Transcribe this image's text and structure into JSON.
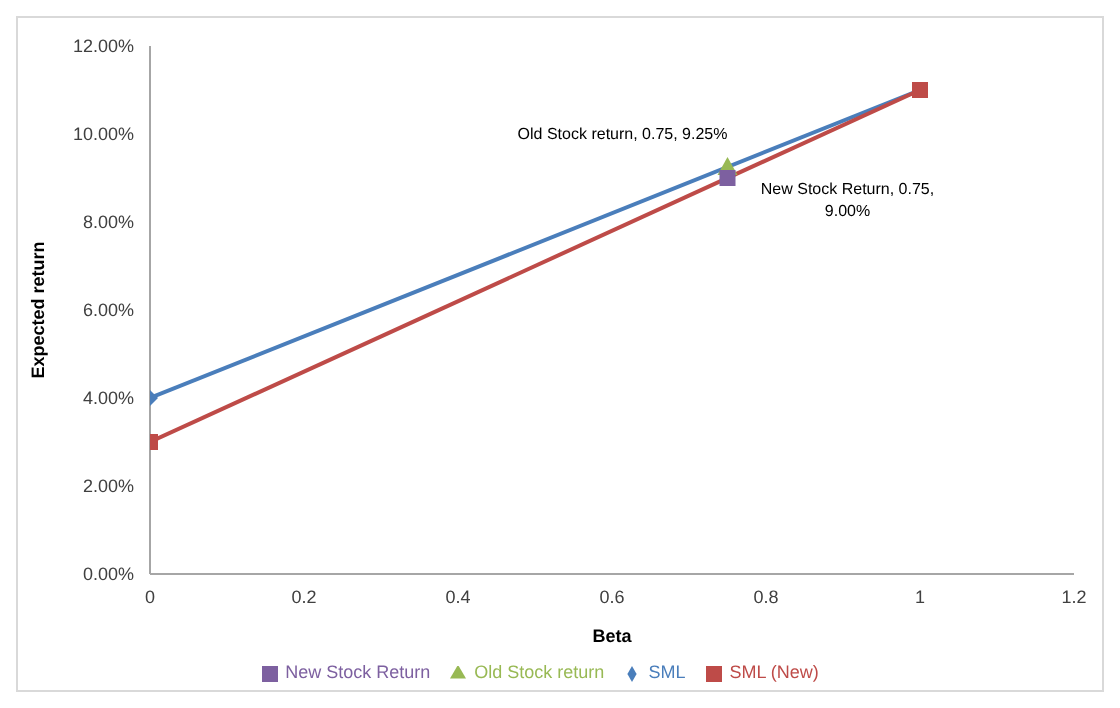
{
  "chart_data": {
    "type": "line",
    "xlabel": "Beta",
    "ylabel": "Expected return",
    "xlim": [
      0,
      1.2
    ],
    "xticks": [
      0,
      0.2,
      0.4,
      0.6,
      0.8,
      1,
      1.2
    ],
    "ylim": [
      0,
      12
    ],
    "yticks": [
      {
        "value": 0,
        "label": "0.00%"
      },
      {
        "value": 2,
        "label": "2.00%"
      },
      {
        "value": 4,
        "label": "4.00%"
      },
      {
        "value": 6,
        "label": "6.00%"
      },
      {
        "value": 8,
        "label": "8.00%"
      },
      {
        "value": 10,
        "label": "10.00%"
      },
      {
        "value": 12,
        "label": "12.00%"
      }
    ],
    "grid": false,
    "legend": "bottom",
    "series": [
      {
        "name": "SML",
        "color": "#4a7ebb",
        "x": [
          0,
          1
        ],
        "values": [
          4,
          11
        ],
        "marker": "diamond"
      },
      {
        "name": "SML (New)",
        "color": "#be4b48",
        "x": [
          0,
          1
        ],
        "values": [
          3,
          11
        ],
        "marker": "square"
      },
      {
        "name": "Old Stock return",
        "color": "#98b954",
        "x": [
          0.75
        ],
        "values": [
          9.25
        ],
        "marker": "triangle"
      },
      {
        "name": "New Stock Return",
        "color": "#7d60a0",
        "x": [
          0.75
        ],
        "values": [
          9
        ],
        "marker": "square"
      }
    ],
    "annotations": [
      {
        "text": "Old Stock return, 0.75, 9.25%",
        "x": 0.75,
        "y": 9.25
      },
      {
        "text": "New Stock Return, 0.75, 9.00%",
        "x": 0.75,
        "y": 9
      }
    ]
  }
}
